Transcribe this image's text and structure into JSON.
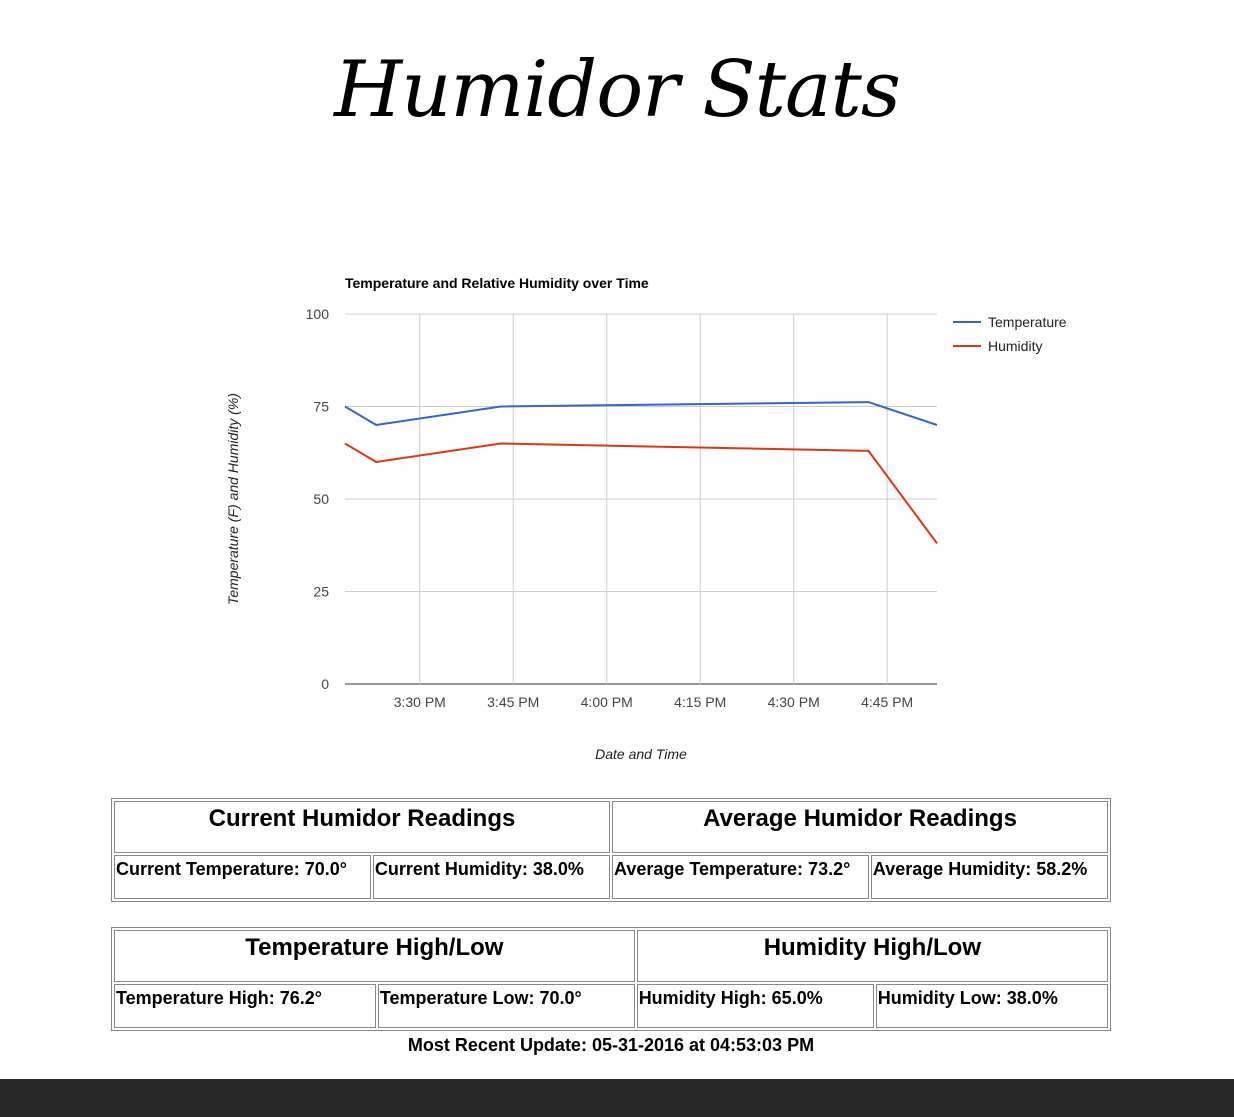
{
  "page": {
    "title": "Humidor Stats",
    "most_recent_update": "Most Recent Update: 05-31-2016 at 04:53:03 PM"
  },
  "chart_data": {
    "type": "line",
    "title": "Temperature and Relative Humidity over Time",
    "xlabel": "Date and Time",
    "ylabel": "Temperature (F) and Humidity (%)",
    "ylim": [
      0,
      100
    ],
    "yticks": [
      0,
      25,
      50,
      75,
      100
    ],
    "xticks": [
      "3:30 PM",
      "3:45 PM",
      "4:00 PM",
      "4:15 PM",
      "4:30 PM",
      "4:45 PM"
    ],
    "xlim": [
      "3:18 PM",
      "4:53 PM"
    ],
    "x": [
      "3:18 PM",
      "3:23 PM",
      "3:43 PM",
      "4:42 PM",
      "4:53 PM"
    ],
    "series": [
      {
        "name": "Temperature",
        "color": "#3366cc",
        "values": [
          75.0,
          70.0,
          75.0,
          76.2,
          70.0
        ]
      },
      {
        "name": "Humidity",
        "color": "#dc3912",
        "values": [
          65.0,
          60.0,
          65.0,
          63.0,
          38.0
        ]
      }
    ],
    "legend_position": "right",
    "grid": true
  },
  "tables": {
    "current_avg": {
      "headers": [
        "Current Humidor Readings",
        "Average Humidor Readings"
      ],
      "cells": [
        "Current Temperature: 70.0°",
        "Current Humidity: 38.0%",
        "Average Temperature: 73.2°",
        "Average Humidity: 58.2%"
      ]
    },
    "high_low": {
      "headers": [
        "Temperature High/Low",
        "Humidity High/Low"
      ],
      "cells": [
        "Temperature High: 76.2°",
        "Temperature Low: 70.0°",
        "Humidity High: 65.0%",
        "Humidity Low: 38.0%"
      ]
    }
  }
}
